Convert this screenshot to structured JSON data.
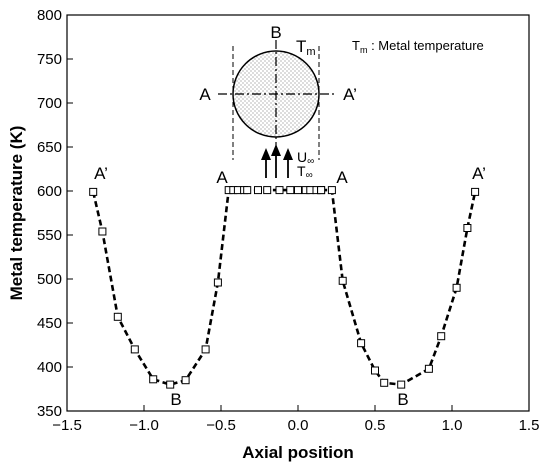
{
  "chart_data": {
    "type": "line",
    "title": "",
    "xlabel": "Axial position",
    "ylabel": "Metal temperature (K)",
    "xlim": [
      -1.5,
      1.5
    ],
    "ylim": [
      350,
      800
    ],
    "xticks": [
      -1.5,
      -1.0,
      -0.5,
      0.0,
      0.5,
      1.0,
      1.5
    ],
    "xtick_labels": [
      "−1.5",
      "−1.0",
      "−0.5",
      "0.0",
      "0.5",
      "1.0",
      "1.5"
    ],
    "yticks": [
      350,
      400,
      450,
      500,
      550,
      600,
      650,
      700,
      750,
      800
    ],
    "ytick_labels": [
      "350",
      "400",
      "450",
      "500",
      "550",
      "600",
      "650",
      "700",
      "750",
      "800"
    ],
    "grid": false,
    "legend": "none",
    "line_style": "dashed",
    "marker": "open-square",
    "color": "#000000",
    "series": [
      {
        "x": [
          -1.33,
          -1.27,
          -1.17,
          -1.06,
          -0.94,
          -0.83,
          -0.73,
          -0.6,
          -0.52,
          -0.45,
          -0.42,
          -0.39,
          -0.35,
          -0.33,
          -0.26,
          -0.2,
          -0.12,
          -0.05,
          0.0,
          0.05,
          0.08,
          0.12,
          0.15
        ],
        "y": [
          599,
          554,
          457,
          420,
          386,
          380,
          385,
          420,
          496,
          601,
          601,
          601,
          601,
          601,
          601,
          601,
          601,
          601,
          601,
          601,
          601,
          601,
          601
        ]
      },
      {
        "x": [
          0.15,
          0.22,
          0.29,
          0.41,
          0.5,
          0.56,
          0.67,
          0.85,
          0.93,
          1.03,
          1.1,
          1.15
        ],
        "y": [
          601,
          601,
          498,
          427,
          396,
          382,
          380,
          398,
          435,
          490,
          558,
          599
        ]
      }
    ],
    "annotations": {
      "A_prime_left": "A’",
      "B_left": "B",
      "A_mid_left": "A",
      "A_mid_right": "A",
      "B_right": "B",
      "A_prime_right": "A’"
    }
  },
  "inset": {
    "label_top": "B",
    "label_left": "A",
    "label_right": "A’",
    "tm": "T",
    "tm_sub": "m",
    "u_main": "U",
    "u_sub": "∞",
    "t_main": "T",
    "t_sub": "∞",
    "legend_sym": "T",
    "legend_sub": "m",
    "legend_text": " : Metal temperature"
  }
}
